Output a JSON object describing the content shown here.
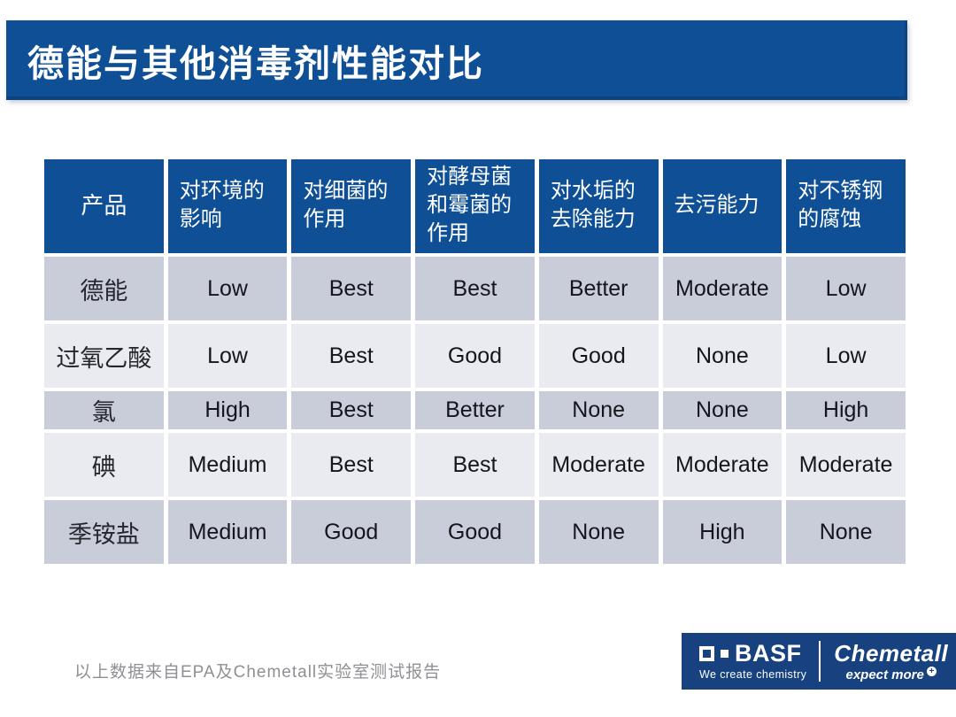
{
  "slide": {
    "title": "德能与其他消毒剂性能对比",
    "footnote": "以上数据来自EPA及Chemetall实验室测试报告"
  },
  "table": {
    "columns": [
      "产品",
      "对环境的影响",
      "对细菌的作用",
      "对酵母菌和霉菌的作用",
      "对水垢的去除能力",
      "去污能力",
      "对不锈钢的腐蚀"
    ],
    "rows": [
      {
        "product": "德能",
        "values": [
          "Low",
          "Best",
          "Best",
          "Better",
          "Moderate",
          "Low"
        ]
      },
      {
        "product": "过氧乙酸",
        "values": [
          "Low",
          "Best",
          "Good",
          "Good",
          "None",
          "Low"
        ]
      },
      {
        "product": "氯",
        "values": [
          "High",
          "Best",
          "Better",
          "None",
          "None",
          "High"
        ]
      },
      {
        "product": "碘",
        "values": [
          "Medium",
          "Best",
          "Best",
          "Moderate",
          "Moderate",
          "Moderate"
        ]
      },
      {
        "product": "季铵盐",
        "values": [
          "Medium",
          "Good",
          "Good",
          "None",
          "High",
          "None"
        ]
      }
    ]
  },
  "footer": {
    "basf_name": "BASF",
    "basf_tagline": "We create chemistry",
    "chemetall_name": "Chemetall",
    "chemetall_tagline": "expect more",
    "chemetall_badge": "+"
  },
  "colors": {
    "primary_blue": "#0e4f96",
    "footer_navy": "#17427f",
    "band_dark": "#c9cdda",
    "band_light": "#e9ebf1"
  }
}
